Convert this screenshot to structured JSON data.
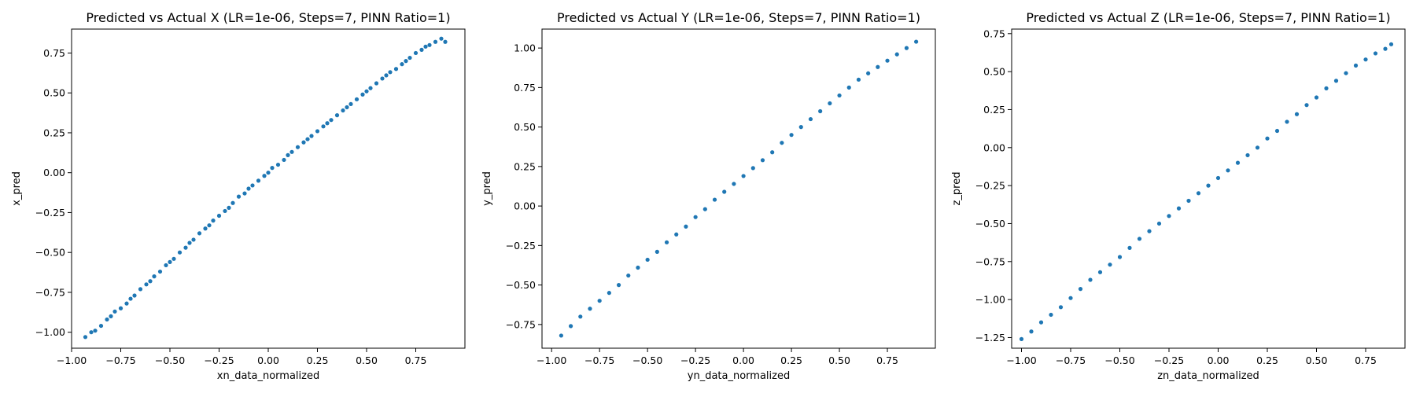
{
  "chart_data": [
    {
      "type": "scatter",
      "title": "Predicted vs Actual X (LR=1e-06, Steps=7, PINN Ratio=1)",
      "xlabel": "xn_data_normalized",
      "ylabel": "x_pred",
      "xlim": [
        -1.0,
        1.0
      ],
      "ylim": [
        -1.1,
        0.9
      ],
      "xticks": [
        -1.0,
        -0.75,
        -0.5,
        -0.25,
        0.0,
        0.25,
        0.5,
        0.75
      ],
      "xtick_labels": [
        "−1.00",
        "−0.75",
        "−0.50",
        "−0.25",
        "0.00",
        "0.25",
        "0.50",
        "0.75"
      ],
      "yticks": [
        -1.0,
        -0.75,
        -0.5,
        -0.25,
        0.0,
        0.25,
        0.5,
        0.75
      ],
      "ytick_labels": [
        "−1.00",
        "−0.75",
        "−0.50",
        "−0.25",
        "0.00",
        "0.25",
        "0.50",
        "0.75"
      ],
      "color": "#1f77b4",
      "x": [
        -0.93,
        -0.9,
        -0.88,
        -0.85,
        -0.82,
        -0.8,
        -0.78,
        -0.75,
        -0.72,
        -0.7,
        -0.68,
        -0.65,
        -0.62,
        -0.6,
        -0.58,
        -0.55,
        -0.52,
        -0.5,
        -0.48,
        -0.45,
        -0.42,
        -0.4,
        -0.38,
        -0.35,
        -0.32,
        -0.3,
        -0.28,
        -0.25,
        -0.22,
        -0.2,
        -0.18,
        -0.15,
        -0.12,
        -0.1,
        -0.08,
        -0.05,
        -0.02,
        0.0,
        0.02,
        0.05,
        0.08,
        0.1,
        0.12,
        0.15,
        0.18,
        0.2,
        0.22,
        0.25,
        0.28,
        0.3,
        0.32,
        0.35,
        0.38,
        0.4,
        0.42,
        0.45,
        0.48,
        0.5,
        0.52,
        0.55,
        0.58,
        0.6,
        0.62,
        0.65,
        0.68,
        0.7,
        0.72,
        0.75,
        0.78,
        0.8,
        0.82,
        0.85,
        0.88,
        0.9
      ],
      "y": [
        -1.03,
        -1.0,
        -0.99,
        -0.96,
        -0.92,
        -0.9,
        -0.87,
        -0.85,
        -0.82,
        -0.79,
        -0.77,
        -0.73,
        -0.7,
        -0.68,
        -0.65,
        -0.62,
        -0.58,
        -0.56,
        -0.54,
        -0.5,
        -0.47,
        -0.44,
        -0.42,
        -0.38,
        -0.35,
        -0.33,
        -0.3,
        -0.27,
        -0.24,
        -0.22,
        -0.19,
        -0.15,
        -0.13,
        -0.1,
        -0.08,
        -0.05,
        -0.02,
        0.0,
        0.03,
        0.05,
        0.08,
        0.11,
        0.13,
        0.16,
        0.19,
        0.21,
        0.23,
        0.26,
        0.29,
        0.31,
        0.33,
        0.36,
        0.39,
        0.41,
        0.43,
        0.46,
        0.49,
        0.51,
        0.53,
        0.56,
        0.59,
        0.61,
        0.63,
        0.65,
        0.68,
        0.7,
        0.72,
        0.75,
        0.77,
        0.79,
        0.8,
        0.82,
        0.84,
        0.82
      ]
    },
    {
      "type": "scatter",
      "title": "Predicted vs Actual Y (LR=1e-06, Steps=7, PINN Ratio=1)",
      "xlabel": "yn_data_normalized",
      "ylabel": "y_pred",
      "xlim": [
        -1.05,
        1.0
      ],
      "ylim": [
        -0.9,
        1.12
      ],
      "xticks": [
        -1.0,
        -0.75,
        -0.5,
        -0.25,
        0.0,
        0.25,
        0.5,
        0.75
      ],
      "xtick_labels": [
        "−1.00",
        "−0.75",
        "−0.50",
        "−0.25",
        "0.00",
        "0.25",
        "0.50",
        "0.75"
      ],
      "yticks": [
        -0.75,
        -0.5,
        -0.25,
        0.0,
        0.25,
        0.5,
        0.75,
        1.0
      ],
      "ytick_labels": [
        "−0.75",
        "−0.50",
        "−0.25",
        "0.00",
        "0.25",
        "0.50",
        "0.75",
        "1.00"
      ],
      "color": "#1f77b4",
      "x": [
        -0.95,
        -0.9,
        -0.85,
        -0.8,
        -0.75,
        -0.7,
        -0.65,
        -0.6,
        -0.55,
        -0.5,
        -0.45,
        -0.4,
        -0.35,
        -0.3,
        -0.25,
        -0.2,
        -0.15,
        -0.1,
        -0.05,
        0.0,
        0.05,
        0.1,
        0.15,
        0.2,
        0.25,
        0.3,
        0.35,
        0.4,
        0.45,
        0.5,
        0.55,
        0.6,
        0.65,
        0.7,
        0.75,
        0.8,
        0.85,
        0.9
      ],
      "y": [
        -0.82,
        -0.76,
        -0.7,
        -0.65,
        -0.6,
        -0.55,
        -0.5,
        -0.44,
        -0.39,
        -0.34,
        -0.29,
        -0.23,
        -0.18,
        -0.13,
        -0.07,
        -0.02,
        0.04,
        0.09,
        0.14,
        0.19,
        0.24,
        0.29,
        0.34,
        0.4,
        0.45,
        0.5,
        0.55,
        0.6,
        0.65,
        0.7,
        0.75,
        0.8,
        0.84,
        0.88,
        0.92,
        0.96,
        1.0,
        1.04
      ]
    },
    {
      "type": "scatter",
      "title": "Predicted vs Actual Z (LR=1e-06, Steps=7, PINN Ratio=1)",
      "xlabel": "zn_data_normalized",
      "ylabel": "z_pred",
      "xlim": [
        -1.05,
        0.95
      ],
      "ylim": [
        -1.32,
        0.78
      ],
      "xticks": [
        -1.0,
        -0.75,
        -0.5,
        -0.25,
        0.0,
        0.25,
        0.5,
        0.75
      ],
      "xtick_labels": [
        "−1.00",
        "−0.75",
        "−0.50",
        "−0.25",
        "0.00",
        "0.25",
        "0.50",
        "0.75"
      ],
      "yticks": [
        -1.25,
        -1.0,
        -0.75,
        -0.5,
        -0.25,
        0.0,
        0.25,
        0.5,
        0.75
      ],
      "ytick_labels": [
        "−1.25",
        "−1.00",
        "−0.75",
        "−0.50",
        "−0.25",
        "0.00",
        "0.25",
        "0.50",
        "0.75"
      ],
      "color": "#1f77b4",
      "x": [
        -1.0,
        -0.95,
        -0.9,
        -0.85,
        -0.8,
        -0.75,
        -0.7,
        -0.65,
        -0.6,
        -0.55,
        -0.5,
        -0.45,
        -0.4,
        -0.35,
        -0.3,
        -0.25,
        -0.2,
        -0.15,
        -0.1,
        -0.05,
        0.0,
        0.05,
        0.1,
        0.15,
        0.2,
        0.25,
        0.3,
        0.35,
        0.4,
        0.45,
        0.5,
        0.55,
        0.6,
        0.65,
        0.7,
        0.75,
        0.8,
        0.85,
        0.88
      ],
      "y": [
        -1.26,
        -1.21,
        -1.15,
        -1.1,
        -1.05,
        -0.99,
        -0.93,
        -0.87,
        -0.82,
        -0.77,
        -0.72,
        -0.66,
        -0.6,
        -0.55,
        -0.5,
        -0.45,
        -0.4,
        -0.35,
        -0.3,
        -0.25,
        -0.2,
        -0.15,
        -0.1,
        -0.05,
        0.0,
        0.06,
        0.11,
        0.17,
        0.22,
        0.28,
        0.33,
        0.39,
        0.44,
        0.49,
        0.54,
        0.58,
        0.62,
        0.65,
        0.68
      ]
    }
  ]
}
